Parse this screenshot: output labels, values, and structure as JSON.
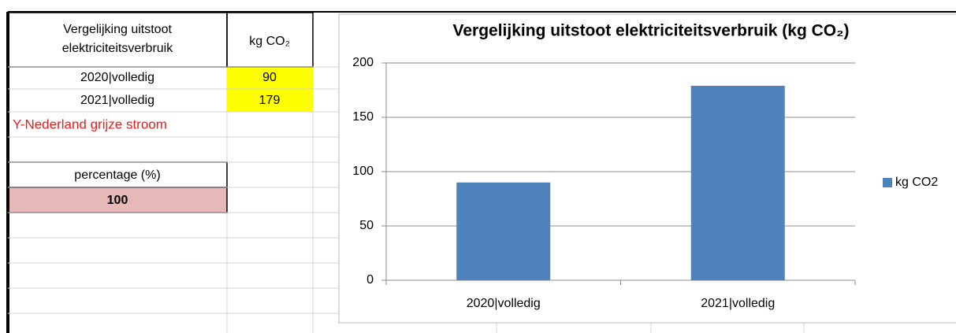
{
  "table": {
    "header": [
      "Vergelijking uitstoot elektriciteitsverbruik",
      "kg CO₂"
    ],
    "rows": [
      [
        "2020|volledig",
        90
      ],
      [
        "2021|volledig",
        179
      ]
    ],
    "note": "Y-Nederland grijze stroom",
    "percentage_label": "percentage (%)",
    "percentage_value": 100
  },
  "chart_data": {
    "type": "bar",
    "title": "Vergelijking uitstoot elektriciteitsverbruik (kg CO₂)",
    "categories": [
      "2020|volledig",
      "2021|volledig"
    ],
    "series": [
      {
        "name": "kg CO2",
        "color": "#4f81bd",
        "values": [
          90,
          179
        ]
      }
    ],
    "ylim": [
      0,
      200
    ],
    "yticks": [
      0,
      50,
      100,
      150,
      200
    ],
    "grid": true,
    "legend": "right"
  }
}
